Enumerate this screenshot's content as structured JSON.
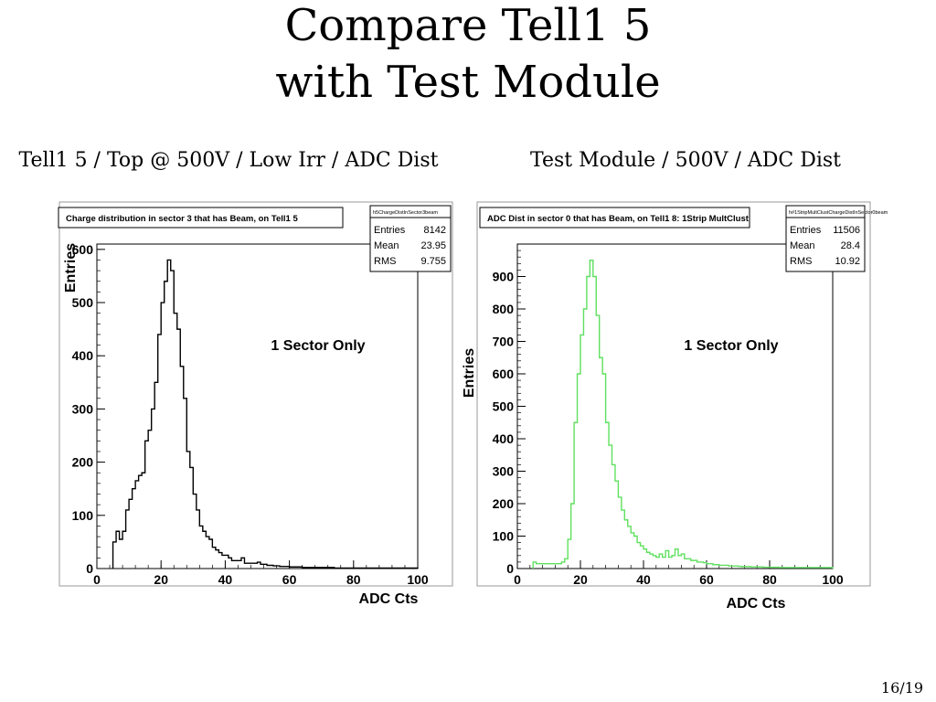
{
  "slide": {
    "title_line1": "Compare Tell1 5",
    "title_line2": "with Test Module",
    "page": "16/19"
  },
  "captions": {
    "left": "Tell1 5 / Top @ 500V / Low Irr / ADC Dist",
    "right": "Test Module / 500V / ADC Dist"
  },
  "chart_data": [
    {
      "type": "line",
      "title": "Charge distribution in sector 3 that has Beam, on Tell1 5",
      "stats_name": "h5ChargeDistInSector3beam",
      "stats": [
        [
          "Entries",
          "8142"
        ],
        [
          "Mean",
          "23.95"
        ],
        [
          "RMS",
          "9.755"
        ]
      ],
      "annotation": "1 Sector Only",
      "xlabel": "ADC Cts",
      "ylabel": "Entries",
      "xlim": [
        0,
        100
      ],
      "ylim": [
        0,
        610
      ],
      "xticks": [
        0,
        20,
        40,
        60,
        80,
        100
      ],
      "yticks": [
        0,
        100,
        200,
        300,
        400,
        500,
        600
      ],
      "color": "#000000",
      "x": [
        5,
        6,
        7,
        8,
        9,
        10,
        11,
        12,
        13,
        14,
        15,
        16,
        17,
        18,
        19,
        20,
        21,
        22,
        23,
        24,
        25,
        26,
        27,
        28,
        29,
        30,
        31,
        32,
        33,
        34,
        35,
        36,
        37,
        38,
        39,
        40,
        41,
        42,
        43,
        44,
        45,
        46,
        47,
        48,
        49,
        50,
        51,
        52,
        53,
        54,
        55,
        56,
        57,
        58,
        59,
        60,
        61,
        62,
        63,
        64,
        65,
        66,
        67,
        68,
        69,
        70,
        71,
        72,
        73,
        74,
        75,
        76,
        77,
        78,
        79,
        80,
        81,
        82,
        83,
        84,
        85,
        86,
        87,
        88,
        89,
        90,
        91,
        92,
        93,
        94,
        95,
        96,
        97,
        98,
        99
      ],
      "y": [
        50,
        70,
        55,
        70,
        110,
        130,
        150,
        165,
        175,
        180,
        240,
        260,
        300,
        350,
        440,
        500,
        540,
        580,
        560,
        480,
        450,
        380,
        320,
        220,
        190,
        140,
        110,
        80,
        70,
        60,
        55,
        40,
        35,
        30,
        25,
        25,
        20,
        15,
        15,
        15,
        20,
        10,
        10,
        10,
        10,
        12,
        8,
        8,
        6,
        6,
        5,
        5,
        4,
        4,
        4,
        3,
        3,
        3,
        3,
        2,
        2,
        2,
        2,
        2,
        2,
        2,
        2,
        2,
        2,
        1,
        1,
        1,
        1,
        1,
        1,
        1,
        1,
        1,
        1,
        1,
        1,
        1,
        1,
        1,
        1,
        1,
        1,
        1,
        1,
        1,
        1,
        1,
        1,
        1,
        1
      ]
    },
    {
      "type": "line",
      "title": "ADC Dist in sector 0 that has Beam, on Tell1 8: 1Strip MultClust",
      "stats_name": "h#1StripMultClustChargeDistInSector0beam",
      "stats": [
        [
          "Entries",
          "11506"
        ],
        [
          "Mean",
          "28.4"
        ],
        [
          "RMS",
          "10.92"
        ]
      ],
      "annotation": "1 Sector Only",
      "xlabel": "ADC Cts",
      "ylabel": "Entries",
      "xlim": [
        0,
        100
      ],
      "ylim": [
        0,
        1000
      ],
      "xticks": [
        0,
        20,
        40,
        60,
        80,
        100
      ],
      "yticks": [
        0,
        100,
        200,
        300,
        400,
        500,
        600,
        700,
        800,
        900
      ],
      "color": "#5fe05f",
      "x": [
        5,
        6,
        7,
        8,
        9,
        10,
        11,
        12,
        13,
        14,
        15,
        16,
        17,
        18,
        19,
        20,
        21,
        22,
        23,
        24,
        25,
        26,
        27,
        28,
        29,
        30,
        31,
        32,
        33,
        34,
        35,
        36,
        37,
        38,
        39,
        40,
        41,
        42,
        43,
        44,
        45,
        46,
        47,
        48,
        49,
        50,
        51,
        52,
        53,
        54,
        55,
        56,
        57,
        58,
        59,
        60,
        61,
        62,
        63,
        64,
        65,
        66,
        67,
        68,
        69,
        70,
        71,
        72,
        73,
        74,
        75,
        76,
        77,
        78,
        79,
        80,
        81,
        82,
        83,
        84,
        85,
        86,
        87,
        88,
        89,
        90,
        91,
        92,
        93,
        94,
        95,
        96,
        97,
        98,
        99
      ],
      "y": [
        20,
        15,
        15,
        15,
        15,
        15,
        15,
        15,
        15,
        20,
        30,
        90,
        200,
        450,
        600,
        720,
        800,
        900,
        950,
        900,
        780,
        650,
        600,
        450,
        380,
        320,
        270,
        220,
        180,
        150,
        130,
        110,
        100,
        80,
        70,
        60,
        50,
        45,
        40,
        35,
        45,
        35,
        55,
        35,
        40,
        60,
        40,
        45,
        30,
        30,
        25,
        25,
        20,
        20,
        18,
        15,
        15,
        12,
        12,
        10,
        10,
        10,
        8,
        8,
        8,
        7,
        6,
        6,
        6,
        5,
        5,
        5,
        5,
        4,
        4,
        4,
        4,
        4,
        3,
        3,
        3,
        3,
        3,
        3,
        3,
        3,
        3,
        3,
        3,
        3,
        3,
        3,
        3,
        3,
        3
      ]
    }
  ]
}
